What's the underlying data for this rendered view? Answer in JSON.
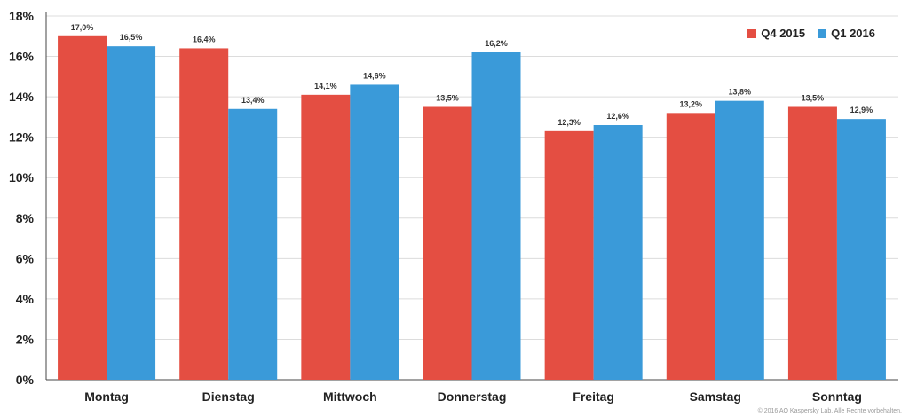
{
  "chart_data": {
    "type": "bar",
    "categories": [
      "Montag",
      "Dienstag",
      "Mittwoch",
      "Donnerstag",
      "Freitag",
      "Samstag",
      "Sonntag"
    ],
    "series": [
      {
        "name": "Q4 2015",
        "color": "#e44e42",
        "values": [
          17.0,
          16.4,
          14.1,
          13.5,
          12.3,
          13.2,
          13.5
        ],
        "labels": [
          "17,0%",
          "16,4%",
          "14,1%",
          "13,5%",
          "12,3%",
          "13,2%",
          "13,5%"
        ]
      },
      {
        "name": "Q1 2016",
        "color": "#3a9ad9",
        "values": [
          16.5,
          13.4,
          14.6,
          16.2,
          12.6,
          13.8,
          12.9
        ],
        "labels": [
          "16,5%",
          "13,4%",
          "14,6%",
          "16,2%",
          "12,6%",
          "13,8%",
          "12,9%"
        ]
      }
    ],
    "yticks": [
      "0%",
      "2%",
      "4%",
      "6%",
      "8%",
      "10%",
      "12%",
      "14%",
      "16%",
      "18%"
    ],
    "ylim": [
      0,
      18
    ],
    "grid": true,
    "legend_position": "top-right",
    "title": "",
    "xlabel": "",
    "ylabel": ""
  },
  "legend": {
    "q4_label": "Q4 2015",
    "q1_label": "Q1 2016"
  },
  "copyright": "© 2016 AO Kaspersky Lab. Alle Rechte vorbehalten."
}
